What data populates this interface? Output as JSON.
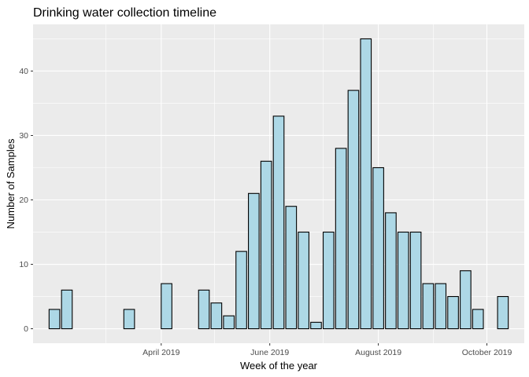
{
  "chart_data": {
    "type": "bar",
    "title": "Drinking water collection timeline",
    "xlabel": "Week of the year",
    "ylabel": "Number of Samples",
    "x_axis_type": "date",
    "bar_width_days": 6,
    "bars": [
      {
        "week": "2019-01-31",
        "value": 3
      },
      {
        "week": "2019-02-07",
        "value": 6
      },
      {
        "week": "2019-03-14",
        "value": 3
      },
      {
        "week": "2019-04-04",
        "value": 7
      },
      {
        "week": "2019-04-25",
        "value": 6
      },
      {
        "week": "2019-05-02",
        "value": 4
      },
      {
        "week": "2019-05-09",
        "value": 2
      },
      {
        "week": "2019-05-16",
        "value": 12
      },
      {
        "week": "2019-05-23",
        "value": 21
      },
      {
        "week": "2019-05-30",
        "value": 26
      },
      {
        "week": "2019-06-06",
        "value": 33
      },
      {
        "week": "2019-06-13",
        "value": 19
      },
      {
        "week": "2019-06-20",
        "value": 15
      },
      {
        "week": "2019-06-27",
        "value": 1
      },
      {
        "week": "2019-07-04",
        "value": 15
      },
      {
        "week": "2019-07-11",
        "value": 28
      },
      {
        "week": "2019-07-18",
        "value": 37
      },
      {
        "week": "2019-07-25",
        "value": 45
      },
      {
        "week": "2019-08-01",
        "value": 25
      },
      {
        "week": "2019-08-08",
        "value": 18
      },
      {
        "week": "2019-08-15",
        "value": 15
      },
      {
        "week": "2019-08-22",
        "value": 15
      },
      {
        "week": "2019-08-29",
        "value": 7
      },
      {
        "week": "2019-09-05",
        "value": 7
      },
      {
        "week": "2019-09-12",
        "value": 5
      },
      {
        "week": "2019-09-19",
        "value": 9
      },
      {
        "week": "2019-09-26",
        "value": 3
      },
      {
        "week": "2019-10-10",
        "value": 5
      }
    ],
    "x_ticks": [
      {
        "date": "2019-04-01",
        "label": "April 2019"
      },
      {
        "date": "2019-06-01",
        "label": "June 2019"
      },
      {
        "date": "2019-08-01",
        "label": "August 2019"
      },
      {
        "date": "2019-10-01",
        "label": "October 2019"
      }
    ],
    "x_minor_ticks": [
      "2019-03-01",
      "2019-05-01",
      "2019-07-01",
      "2019-09-01"
    ],
    "xlim": [
      "2019-01-19",
      "2019-10-22"
    ],
    "y_ticks": [
      0,
      10,
      20,
      30,
      40
    ],
    "ylim": [
      -2.25,
      47.25
    ],
    "grid": true,
    "legend": "none",
    "colors": {
      "bar_fill": "#add8e6",
      "bar_stroke": "#000000",
      "panel_background": "#ebebeb",
      "grid": "#ffffff",
      "tick_label": "#4d4d4d"
    }
  }
}
